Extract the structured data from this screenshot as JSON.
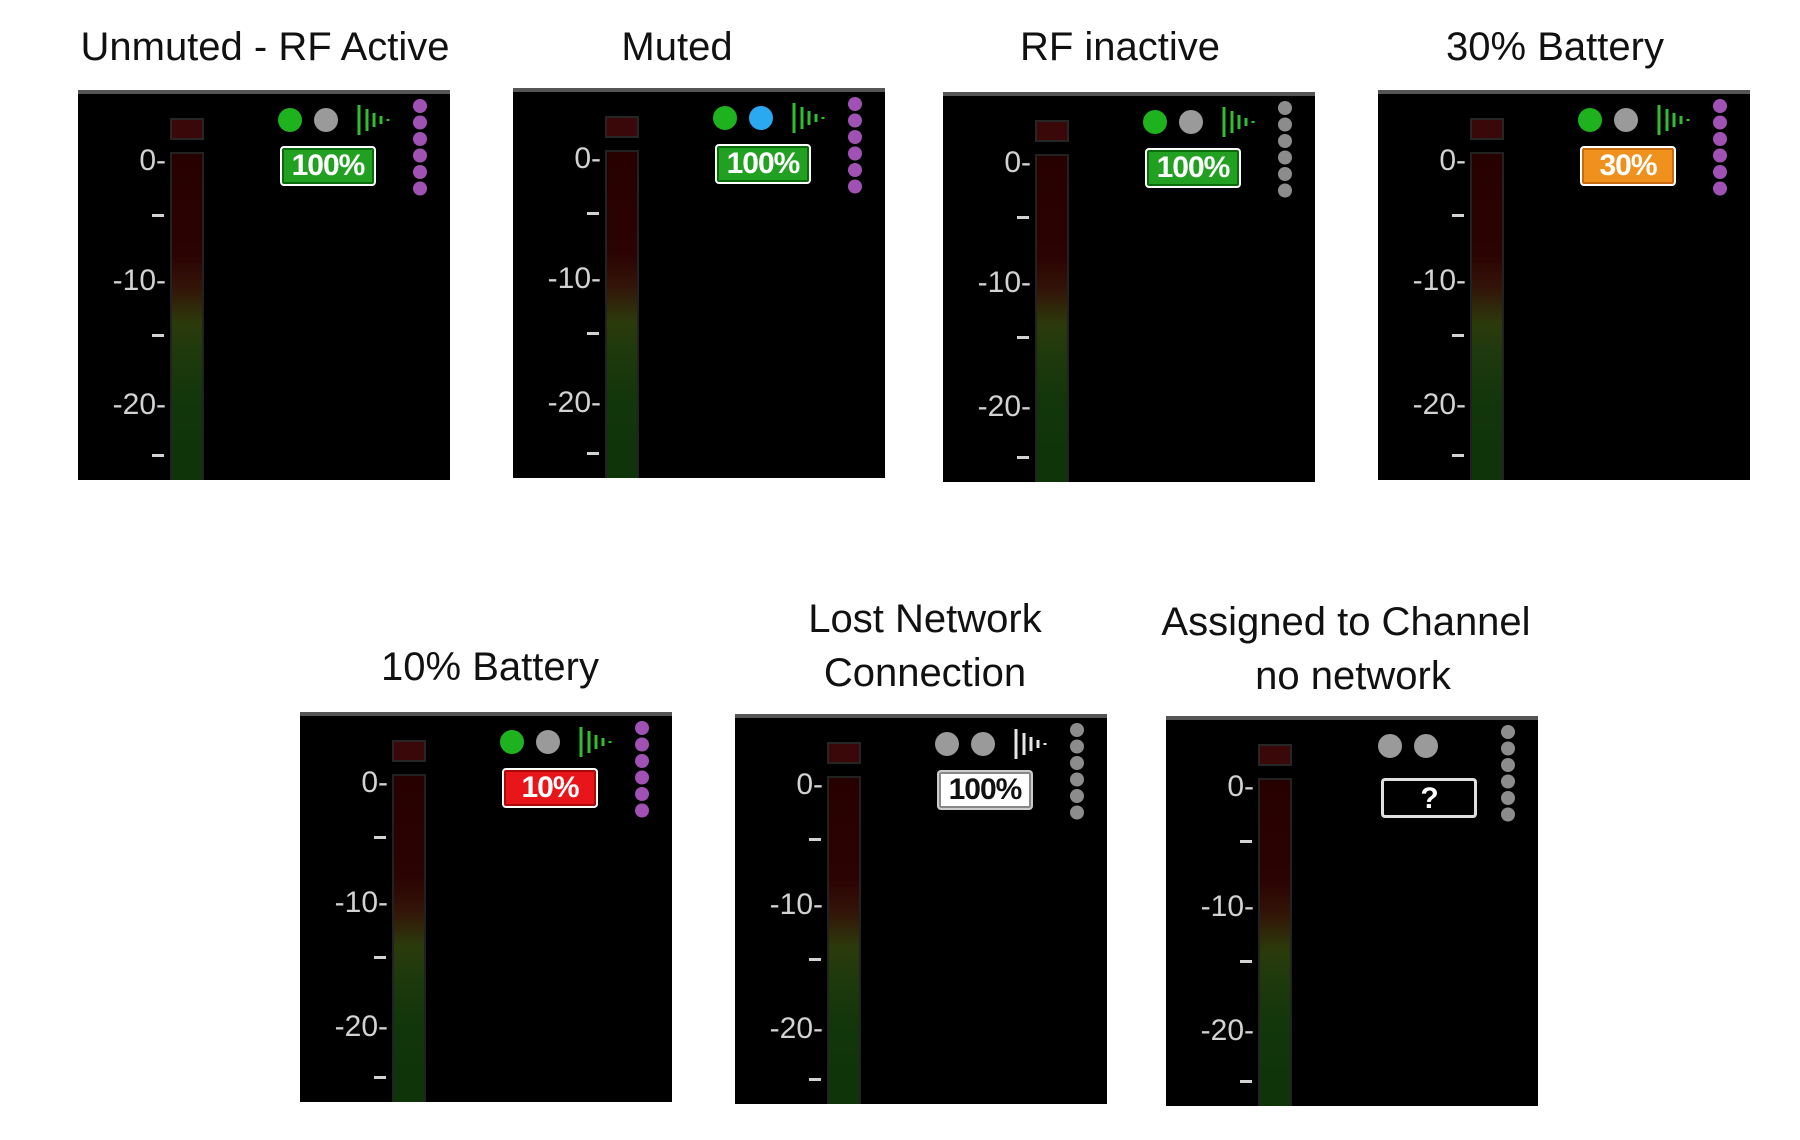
{
  "colors": {
    "panel_bg": "#000000",
    "dot_green": "#1fb21f",
    "dot_gray": "#9a9a9a",
    "dot_blue": "#2aa8f0",
    "signal_green": "#2fc02f",
    "signal_white": "#e6e6e6",
    "stack_purple": "#a052b4",
    "stack_gray": "#8c8c8c",
    "badge_green": "#22a022",
    "badge_orange": "#f0911e",
    "badge_red": "#e8161a",
    "badge_white": "#ffffff"
  },
  "meter_scale": {
    "labels": [
      "0-",
      "-10-",
      "-20-"
    ],
    "minor_dash": "-"
  },
  "panels": [
    {
      "caption": "Unmuted - RF Active",
      "rf_dot": "green",
      "mute_dot": "gray",
      "signal_icon": "signal-bars-icon",
      "signal_color": "green",
      "stack_icon": "network-stack-icon",
      "stack_color": "purple",
      "battery_label": "100%",
      "battery_style": "green"
    },
    {
      "caption": "Muted",
      "rf_dot": "green",
      "mute_dot": "blue",
      "signal_icon": "signal-bars-icon",
      "signal_color": "green",
      "stack_icon": "network-stack-icon",
      "stack_color": "purple",
      "battery_label": "100%",
      "battery_style": "green"
    },
    {
      "caption": "RF inactive",
      "rf_dot": "green",
      "mute_dot": "gray",
      "signal_icon": "signal-bars-icon",
      "signal_color": "green",
      "stack_icon": "network-stack-icon",
      "stack_color": "gray",
      "battery_label": "100%",
      "battery_style": "green"
    },
    {
      "caption": "30% Battery",
      "rf_dot": "green",
      "mute_dot": "gray",
      "signal_icon": "signal-bars-icon",
      "signal_color": "green",
      "stack_icon": "network-stack-icon",
      "stack_color": "purple",
      "battery_label": "30%",
      "battery_style": "orange"
    },
    {
      "caption": "10% Battery",
      "rf_dot": "green",
      "mute_dot": "gray",
      "signal_icon": "signal-bars-icon",
      "signal_color": "green",
      "stack_icon": "network-stack-icon",
      "stack_color": "purple",
      "battery_label": "10%",
      "battery_style": "red"
    },
    {
      "caption_line1": "Lost Network",
      "caption_line2": "Connection",
      "rf_dot": "gray",
      "mute_dot": "gray",
      "signal_icon": "signal-bars-icon",
      "signal_color": "white",
      "stack_icon": "network-stack-icon",
      "stack_color": "gray",
      "battery_label": "100%",
      "battery_style": "white"
    },
    {
      "caption_line1": "Assigned to Channel",
      "caption_line2": "no network",
      "rf_dot": "gray",
      "mute_dot": "gray",
      "stack_icon": "network-stack-icon",
      "stack_color": "gray",
      "battery_label": "?",
      "battery_style": "unknown"
    }
  ]
}
